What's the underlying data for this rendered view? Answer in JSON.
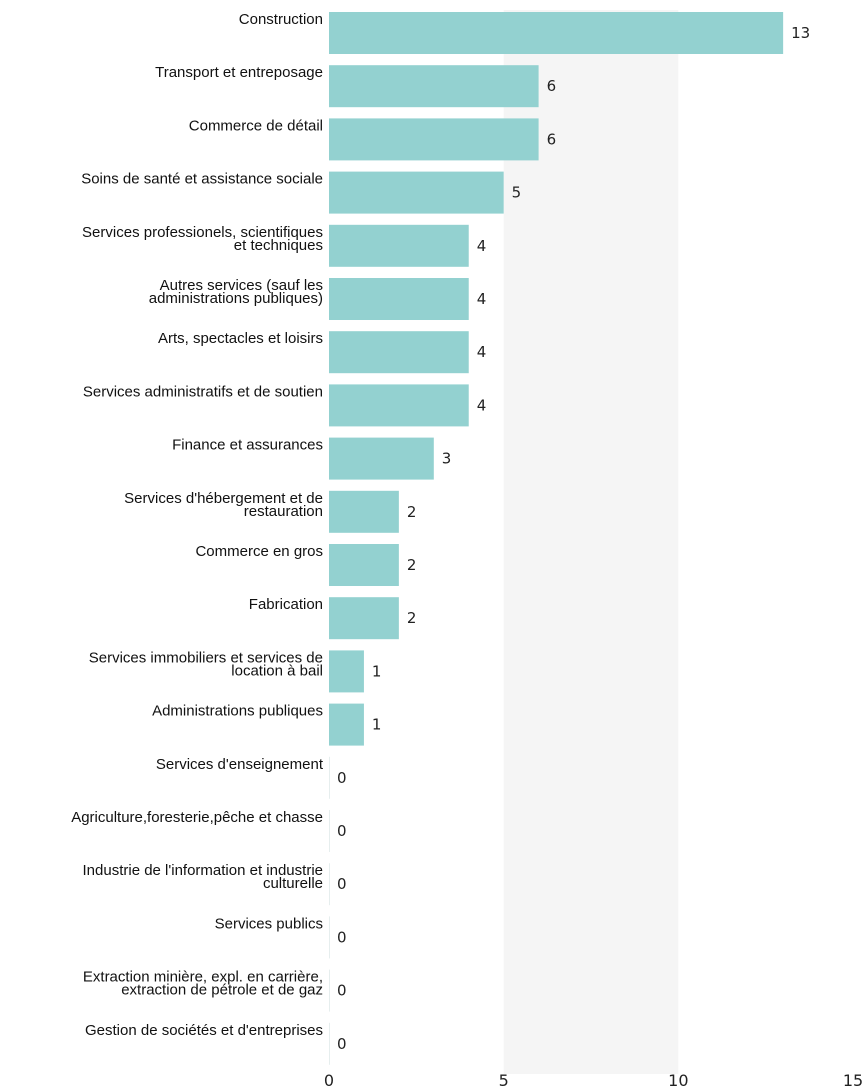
{
  "chart_data": {
    "type": "bar",
    "orientation": "horizontal",
    "categories": [
      [
        "Construction"
      ],
      [
        "Transport et entreposage"
      ],
      [
        "Commerce de détail"
      ],
      [
        "Soins de santé et assistance sociale"
      ],
      [
        "Services professionels, scientifiques",
        "et techniques"
      ],
      [
        "Autres services (sauf les",
        "administrations publiques)"
      ],
      [
        "Arts, spectacles et loisirs"
      ],
      [
        "Services administratifs et de soutien"
      ],
      [
        "Finance et assurances"
      ],
      [
        "Services d'hébergement et de",
        "restauration"
      ],
      [
        "Commerce en gros"
      ],
      [
        "Fabrication"
      ],
      [
        "Services immobiliers et services de",
        "location à bail"
      ],
      [
        "Administrations publiques"
      ],
      [
        "Services d'enseignement"
      ],
      [
        "Agriculture,foresterie,pêche et chasse"
      ],
      [
        "Industrie de l'information et industrie",
        "culturelle"
      ],
      [
        "Services publics"
      ],
      [
        "Extraction minière, expl. en carrière,",
        "extraction de pétrole et de gaz"
      ],
      [
        "Gestion de sociétés et d'entreprises"
      ]
    ],
    "values": [
      13,
      6,
      6,
      5,
      4,
      4,
      4,
      4,
      3,
      2,
      2,
      2,
      1,
      1,
      0,
      0,
      0,
      0,
      0,
      0
    ],
    "xlim": [
      0,
      15
    ],
    "xticks": [
      0,
      5,
      10,
      15
    ],
    "bar_color": "#93d1d0",
    "band_color": "#f5f5f5",
    "grid": false,
    "legend": "none"
  }
}
